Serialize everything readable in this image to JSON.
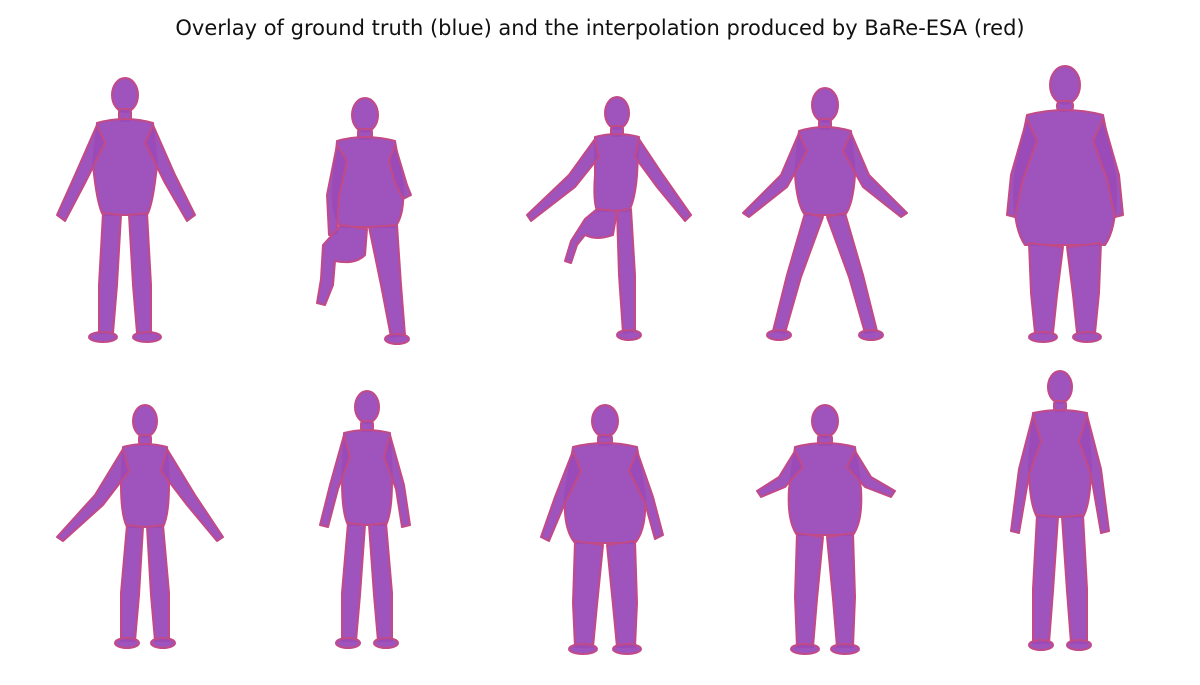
{
  "figure": {
    "title": "Overlay of ground truth (blue) and the interpolation produced by BaRe-ESA (red)"
  },
  "colors": {
    "ground_truth": "#5a3fd6",
    "interpolation": "#c24a86",
    "overlay": "#9a4ab8",
    "background": "#ffffff"
  },
  "rows": [
    {
      "meshes": [
        {
          "id": "mesh-r1-c1",
          "pose": "arms-out",
          "build": "slim"
        },
        {
          "id": "mesh-r1-c2",
          "pose": "knee-raised",
          "build": "heavy"
        },
        {
          "id": "mesh-r1-c3",
          "pose": "knee-raised-arms-out",
          "build": "slim"
        },
        {
          "id": "mesh-r1-c4",
          "pose": "wide-stance",
          "build": "slim"
        },
        {
          "id": "mesh-r1-c5",
          "pose": "standing",
          "build": "very-heavy"
        }
      ]
    },
    {
      "meshes": [
        {
          "id": "mesh-r2-c1",
          "pose": "arms-out",
          "build": "slim"
        },
        {
          "id": "mesh-r2-c2",
          "pose": "standing",
          "build": "slim"
        },
        {
          "id": "mesh-r2-c3",
          "pose": "standing",
          "build": "heavy"
        },
        {
          "id": "mesh-r2-c4",
          "pose": "arms-out",
          "build": "heavy"
        },
        {
          "id": "mesh-r2-c5",
          "pose": "standing",
          "build": "slim"
        }
      ]
    }
  ]
}
